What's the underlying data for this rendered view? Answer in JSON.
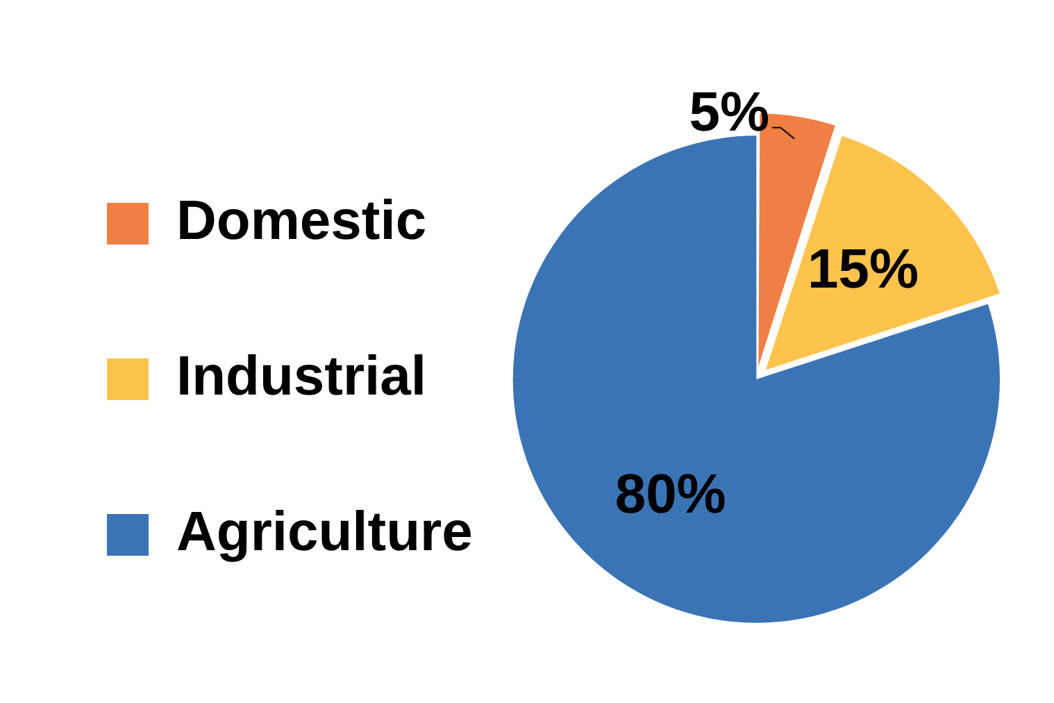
{
  "chart_data": {
    "type": "pie",
    "categories": [
      "Domestic",
      "Industrial",
      "Agriculture"
    ],
    "values": [
      5,
      15,
      80
    ],
    "colors": [
      "#f07f45",
      "#fec34c",
      "#3b74b5"
    ],
    "value_labels": [
      "5%",
      "15%",
      "80%"
    ],
    "legend": "left"
  }
}
